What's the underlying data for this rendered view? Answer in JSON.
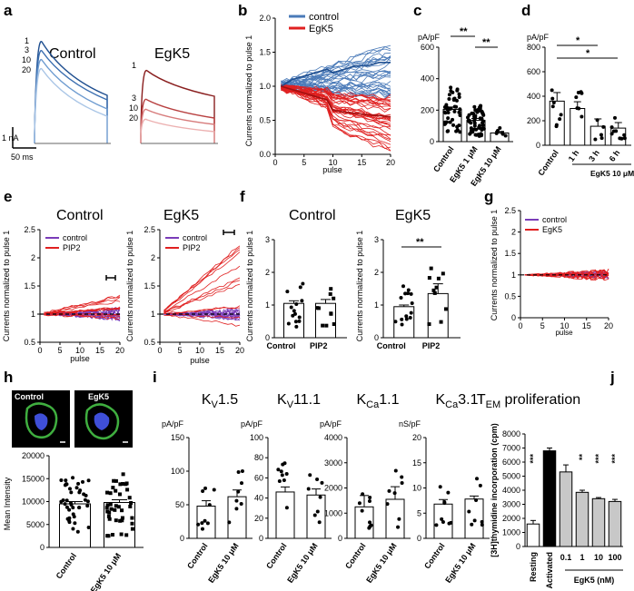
{
  "figure": {
    "panel_labels": [
      "a",
      "b",
      "c",
      "d",
      "e",
      "f",
      "g",
      "h",
      "i",
      "j"
    ],
    "colors": {
      "control_blue": "#4a7ab8",
      "egk5_red": "#e02020",
      "purple": "#7a3cb8",
      "bar_black": "#000000",
      "bar_gray": "#c8c8c8",
      "cell_green": "#3fae3f",
      "nucleus_blue": "#3f4fd8"
    }
  },
  "chart_data": [
    {
      "panel": "a",
      "type": "line",
      "subplots": [
        {
          "title": "Control",
          "pulse_labels": [
            "1",
            "3",
            "10",
            "20"
          ]
        },
        {
          "title": "EgK5",
          "pulse_labels": [
            "1",
            "3",
            "10",
            "20"
          ]
        }
      ],
      "scale_bar": {
        "y": "1 nA",
        "x": "50 ms"
      }
    },
    {
      "panel": "b",
      "type": "line",
      "xlabel": "pulse",
      "ylabel": "Currents normalized to pulse 1",
      "xlim": [
        0,
        20
      ],
      "ylim": [
        0,
        2
      ],
      "xticks": [
        "0",
        "5",
        "10",
        "15",
        "20"
      ],
      "yticks": [
        "0.0",
        "0.5",
        "1.0",
        "1.5",
        "2.0"
      ],
      "legend": [
        "control",
        "EgK5"
      ],
      "series": [
        {
          "name": "control",
          "x": [
            1,
            3,
            5,
            7,
            9,
            10,
            12,
            14,
            16,
            18,
            20
          ],
          "values": [
            1.0,
            1.1,
            1.15,
            1.2,
            1.25,
            1.2,
            1.25,
            1.3,
            1.3,
            1.35,
            1.35
          ]
        },
        {
          "name": "EgK5",
          "x": [
            1,
            3,
            5,
            7,
            9,
            10,
            12,
            14,
            16,
            18,
            20
          ],
          "values": [
            1.0,
            0.95,
            0.9,
            0.85,
            0.8,
            0.65,
            0.62,
            0.6,
            0.58,
            0.57,
            0.55
          ]
        }
      ]
    },
    {
      "panel": "c",
      "type": "bar",
      "ylabel": "pA/pF",
      "ylim": [
        0,
        600
      ],
      "yticks": [
        "0",
        "200",
        "400",
        "600"
      ],
      "categories": [
        "Control",
        "EgK5 1 μM",
        "EgK5 10 μM"
      ],
      "values": [
        205,
        135,
        55
      ],
      "errors": [
        15,
        12,
        10
      ],
      "significance": [
        "**",
        "**"
      ]
    },
    {
      "panel": "d",
      "type": "bar",
      "ylabel": "pA/pF",
      "ylim": [
        0,
        800
      ],
      "yticks": [
        "0",
        "200",
        "400",
        "600",
        "800"
      ],
      "categories": [
        "Control",
        "1 h",
        "3 h",
        "6 h"
      ],
      "group_label": "EgK5 10 μM",
      "values": [
        360,
        300,
        155,
        140
      ],
      "errors": [
        70,
        55,
        60,
        45
      ],
      "significance": [
        "*",
        "*"
      ]
    },
    {
      "panel": "e",
      "type": "line",
      "subplots": [
        {
          "title": "Control",
          "xlabel": "pulse",
          "ylabel": "Currents normalized to pulse 1",
          "xlim": [
            0,
            20
          ],
          "ylim": [
            0.5,
            2.5
          ],
          "xticks": [
            "0",
            "5",
            "10",
            "15",
            "20"
          ],
          "yticks": [
            "0.5",
            "1",
            "1.5",
            "2",
            "2.5"
          ],
          "legend": [
            "control",
            "PIP2"
          ]
        },
        {
          "title": "EgK5",
          "xlabel": "pulse",
          "ylabel": "Currents normalized to pulse 1",
          "xlim": [
            0,
            20
          ],
          "ylim": [
            0.5,
            2.5
          ],
          "xticks": [
            "0",
            "5",
            "10",
            "15",
            "20"
          ],
          "yticks": [
            "0.5",
            "1",
            "1.5",
            "2",
            "2.5"
          ],
          "legend": [
            "control",
            "PIP2"
          ]
        }
      ]
    },
    {
      "panel": "f",
      "type": "bar",
      "subplots": [
        {
          "title": "Control",
          "categories": [
            "Control",
            "PIP2"
          ],
          "values": [
            1.05,
            1.05
          ],
          "errors": [
            0.08,
            0.12
          ],
          "ylabel": "Currents normalized to pulse 1",
          "ylim": [
            0,
            3
          ],
          "yticks": [
            "0",
            "1",
            "2",
            "3"
          ]
        },
        {
          "title": "EgK5",
          "categories": [
            "Control",
            "PIP2"
          ],
          "values": [
            0.95,
            1.35
          ],
          "errors": [
            0.05,
            0.3
          ],
          "ylabel": "Currents normalized to pulse 1",
          "ylim": [
            0,
            3
          ],
          "yticks": [
            "0",
            "1",
            "2",
            "3"
          ],
          "significance": [
            "**"
          ]
        }
      ]
    },
    {
      "panel": "g",
      "type": "line",
      "xlabel": "pulse",
      "ylabel": "Currents normalized to pulse 1",
      "xlim": [
        0,
        20
      ],
      "ylim": [
        0,
        2.5
      ],
      "xticks": [
        "0",
        "5",
        "10",
        "15",
        "20"
      ],
      "yticks": [
        "0",
        "0.5",
        "1",
        "1.5",
        "2",
        "2.5"
      ],
      "legend": [
        "control",
        "EgK5"
      ]
    },
    {
      "panel": "h",
      "type": "bar",
      "image_labels": [
        "Control",
        "EgK5"
      ],
      "ylabel": "Mean Intensity",
      "ylim": [
        0,
        20000
      ],
      "yticks": [
        "0",
        "5000",
        "10000",
        "15000",
        "20000"
      ],
      "categories": [
        "Control",
        "EgK5 10 μM"
      ],
      "values": [
        9500,
        9800
      ],
      "errors": [
        500,
        600
      ]
    },
    {
      "panel": "i",
      "type": "bar",
      "subplots": [
        {
          "title_main": "K",
          "title_sub": "V",
          "title_rest": "1.5",
          "ylabel": "pA/pF",
          "ylim": [
            0,
            150
          ],
          "yticks": [
            "0",
            "50",
            "100",
            "150"
          ],
          "categories": [
            "Control",
            "EgK5 10 μM"
          ],
          "values": [
            48,
            62
          ],
          "errors": [
            8,
            10
          ]
        },
        {
          "title_main": "K",
          "title_sub": "V",
          "title_rest": "11.1",
          "ylabel": "pA/pF",
          "ylim": [
            0,
            100
          ],
          "yticks": [
            "0",
            "20",
            "40",
            "60",
            "80",
            "100"
          ],
          "categories": [
            "Control",
            "EgK5 10 μM"
          ],
          "values": [
            46,
            43
          ],
          "errors": [
            5,
            6
          ]
        },
        {
          "title_main": "K",
          "title_sub": "Ca",
          "title_rest": "1.1",
          "ylabel": "pA/pF",
          "ylim": [
            0,
            4000
          ],
          "yticks": [
            "0",
            "1000",
            "2000",
            "3000",
            "4000"
          ],
          "categories": [
            "Control",
            "EgK5 10 μM"
          ],
          "values": [
            1250,
            1550
          ],
          "errors": [
            450,
            500
          ]
        },
        {
          "title_main": "K",
          "title_sub": "Ca",
          "title_rest": "3.1",
          "ylabel": "nS/pF",
          "ylim": [
            0,
            20
          ],
          "yticks": [
            "0",
            "5",
            "10",
            "15",
            "20"
          ],
          "categories": [
            "Control",
            "EgK5 10 μM"
          ],
          "values": [
            6.8,
            7.8
          ],
          "errors": [
            0.9,
            0.6
          ]
        }
      ]
    },
    {
      "panel": "j",
      "type": "bar",
      "title_main": "T",
      "title_sub": "EM",
      "title_rest": " proliferation",
      "ylabel": "[3H]thymidine incorporation (cpm)",
      "ylim": [
        0,
        8000
      ],
      "yticks": [
        "0",
        "1000",
        "2000",
        "3000",
        "4000",
        "5000",
        "6000",
        "7000",
        "8000"
      ],
      "categories": [
        "Resting",
        "Activated",
        "0.1",
        "1",
        "10",
        "100"
      ],
      "group_label": "EgK5 (nM)",
      "values": [
        1600,
        6800,
        5300,
        3850,
        3400,
        3200
      ],
      "errors": [
        250,
        200,
        500,
        150,
        80,
        150
      ],
      "significance": [
        "***",
        "",
        "",
        "**",
        "***",
        "***"
      ]
    }
  ]
}
